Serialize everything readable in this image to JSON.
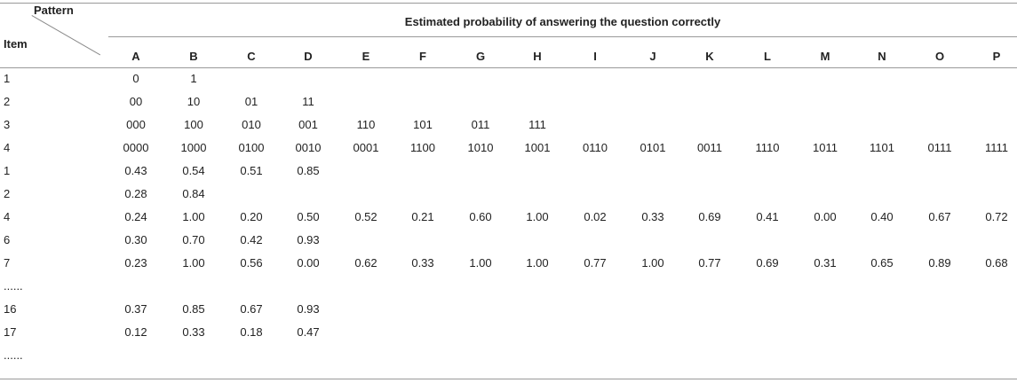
{
  "table": {
    "corner_top": "Pattern",
    "corner_bottom": "Item",
    "title": "Estimated probability of answering the question correctly",
    "columns": [
      "A",
      "B",
      "C",
      "D",
      "E",
      "F",
      "G",
      "H",
      "I",
      "J",
      "K",
      "L",
      "M",
      "N",
      "O",
      "P"
    ],
    "rows": [
      {
        "item": "1",
        "cells": [
          "0",
          "1"
        ]
      },
      {
        "item": "2",
        "cells": [
          "00",
          "10",
          "01",
          "11"
        ]
      },
      {
        "item": "3",
        "cells": [
          "000",
          "100",
          "010",
          "001",
          "110",
          "101",
          "011",
          "111"
        ]
      },
      {
        "item": "4",
        "cells": [
          "0000",
          "1000",
          "0100",
          "0010",
          "0001",
          "1100",
          "1010",
          "1001",
          "0110",
          "0101",
          "0011",
          "1110",
          "1011",
          "1101",
          "0111",
          "1111"
        ]
      },
      {
        "item": "1",
        "cells": [
          "0.43",
          "0.54",
          "0.51",
          "0.85"
        ]
      },
      {
        "item": "2",
        "cells": [
          "0.28",
          "0.84"
        ]
      },
      {
        "item": "4",
        "cells": [
          "0.24",
          "1.00",
          "0.20",
          "0.50",
          "0.52",
          "0.21",
          "0.60",
          "1.00",
          "0.02",
          "0.33",
          "0.69",
          "0.41",
          "0.00",
          "0.40",
          "0.67",
          "0.72"
        ]
      },
      {
        "item": "6",
        "cells": [
          "0.30",
          "0.70",
          "0.42",
          "0.93"
        ]
      },
      {
        "item": "7",
        "cells": [
          "0.23",
          "1.00",
          "0.56",
          "0.00",
          "0.62",
          "0.33",
          "1.00",
          "1.00",
          "0.77",
          "1.00",
          "0.77",
          "0.69",
          "0.31",
          "0.65",
          "0.89",
          "0.68"
        ]
      },
      {
        "item": "......",
        "cells": []
      },
      {
        "item": "16",
        "cells": [
          "0.37",
          "0.85",
          "0.67",
          "0.93"
        ]
      },
      {
        "item": "17",
        "cells": [
          "0.12",
          "0.33",
          "0.18",
          "0.47"
        ]
      },
      {
        "item": "......",
        "cells": []
      }
    ]
  }
}
